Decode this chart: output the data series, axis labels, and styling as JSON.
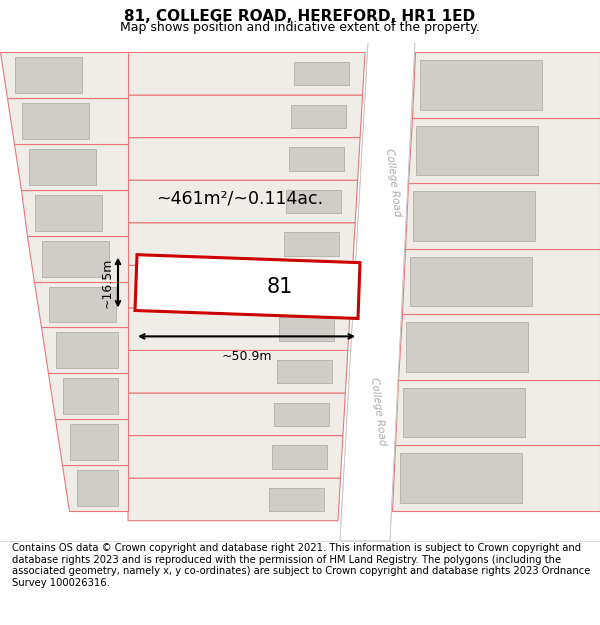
{
  "title": "81, COLLEGE ROAD, HEREFORD, HR1 1ED",
  "subtitle": "Map shows position and indicative extent of the property.",
  "footer": "Contains OS data © Crown copyright and database right 2021. This information is subject to Crown copyright and database rights 2023 and is reproduced with the permission of HM Land Registry. The polygons (including the associated geometry, namely x, y co-ordinates) are subject to Crown copyright and database rights 2023 Ordnance Survey 100026316.",
  "street_label": "College Road",
  "area_text": "~461m²/~0.114ac.",
  "label_81": "81",
  "dim_width": "~50.9m",
  "dim_height": "~16.5m",
  "title_fontsize": 11,
  "subtitle_fontsize": 9,
  "footer_fontsize": 7.2,
  "map_bg": "#f0ede8",
  "road_fill": "#e8e4de",
  "road_white": "#ffffff",
  "plot_edge": "#e87878",
  "hi_edge": "#cc0000",
  "bld_fill": "#d0cdc8",
  "bld_edge": "#b8b4ae",
  "text_gray": "#aaaaaa"
}
